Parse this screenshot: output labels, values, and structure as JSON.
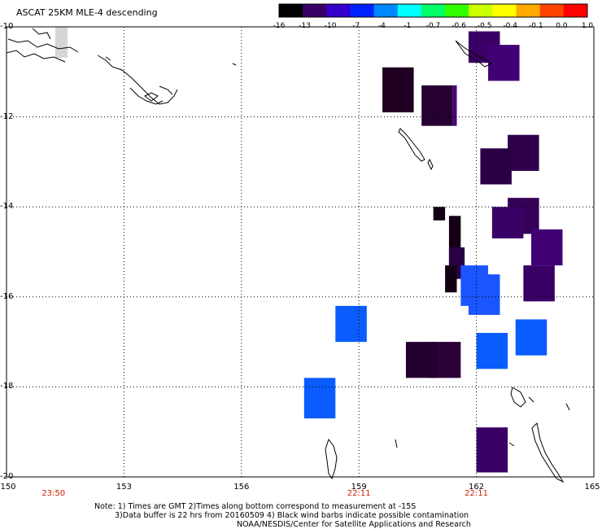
{
  "title": "ASCAT 25KM MLE-4 descending",
  "colorbar": {
    "labels": [
      "-16",
      "-13",
      "-10",
      "-7",
      "-4",
      "-1",
      "-0.7",
      "-0.6",
      "-0.5",
      "-0.4",
      "-0.1",
      "0.0",
      "1.0"
    ],
    "colors": [
      "#000000",
      "#3a0066",
      "#3300cc",
      "#0022ff",
      "#0088ff",
      "#00ffff",
      "#00ff66",
      "#33ff00",
      "#ccff00",
      "#ffff00",
      "#ffaa00",
      "#ff4400",
      "#ff0000"
    ]
  },
  "map": {
    "lon_labels": [
      "150",
      "153",
      "156",
      "159",
      "162",
      "165"
    ],
    "lat_labels": [
      "-10",
      "-12",
      "-14",
      "-16",
      "-18",
      "-20"
    ],
    "lon_range": [
      150,
      165
    ],
    "lat_range": [
      -10,
      -20
    ],
    "pass_times": [
      {
        "lon": 151.2,
        "time": "23:50"
      },
      {
        "lon": 159.0,
        "time": "22:11"
      },
      {
        "lon": 162.0,
        "time": "22:11"
      }
    ],
    "swath_cells": [
      {
        "lon0": 159.6,
        "lon1": 160.4,
        "lat0": -10.9,
        "lat1": -11.9,
        "color": "#1f0022"
      },
      {
        "lon0": 160.6,
        "lon1": 161.4,
        "lat0": -11.3,
        "lat1": -12.2,
        "color": "#250030"
      },
      {
        "lon0": 161.4,
        "lon1": 161.5,
        "lat0": -11.3,
        "lat1": -12.2,
        "color": "#4a0080"
      },
      {
        "lon0": 161.8,
        "lon1": 162.6,
        "lat0": -10.1,
        "lat1": -10.8,
        "color": "#3a0066"
      },
      {
        "lon0": 162.3,
        "lon1": 163.1,
        "lat0": -10.4,
        "lat1": -11.2,
        "color": "#420075"
      },
      {
        "lon0": 162.8,
        "lon1": 163.6,
        "lat0": -12.4,
        "lat1": -13.2,
        "color": "#2e004c"
      },
      {
        "lon0": 162.1,
        "lon1": 162.9,
        "lat0": -12.7,
        "lat1": -13.5,
        "color": "#2a0045"
      },
      {
        "lon0": 162.8,
        "lon1": 163.6,
        "lat0": -13.8,
        "lat1": -14.6,
        "color": "#350058"
      },
      {
        "lon0": 162.4,
        "lon1": 163.2,
        "lat0": -14.0,
        "lat1": -14.7,
        "color": "#3a0066"
      },
      {
        "lon0": 163.4,
        "lon1": 164.2,
        "lat0": -14.5,
        "lat1": -15.3,
        "color": "#420075"
      },
      {
        "lon0": 163.2,
        "lon1": 164.0,
        "lat0": -15.3,
        "lat1": -16.1,
        "color": "#3a0066"
      },
      {
        "lon0": 160.9,
        "lon1": 161.2,
        "lat0": -14.0,
        "lat1": -14.3,
        "color": "#140014"
      },
      {
        "lon0": 161.3,
        "lon1": 161.6,
        "lat0": -14.2,
        "lat1": -15.3,
        "color": "#140014"
      },
      {
        "lon0": 161.3,
        "lon1": 161.7,
        "lat0": -14.9,
        "lat1": -15.6,
        "color": "#2a0045"
      },
      {
        "lon0": 161.2,
        "lon1": 161.5,
        "lat0": -15.3,
        "lat1": -15.9,
        "color": "#140014"
      },
      {
        "lon0": 161.6,
        "lon1": 162.3,
        "lat0": -15.3,
        "lat1": -16.2,
        "color": "#1a55ff"
      },
      {
        "lon0": 161.8,
        "lon1": 162.6,
        "lat0": -15.5,
        "lat1": -16.4,
        "color": "#1a55ff"
      },
      {
        "lon0": 158.4,
        "lon1": 159.2,
        "lat0": -16.2,
        "lat1": -17.0,
        "color": "#0b5cff"
      },
      {
        "lon0": 160.8,
        "lon1": 161.6,
        "lat0": -17.0,
        "lat1": -17.8,
        "color": "#2c0038"
      },
      {
        "lon0": 160.2,
        "lon1": 161.0,
        "lat0": -17.0,
        "lat1": -17.8,
        "color": "#230030"
      },
      {
        "lon0": 162.0,
        "lon1": 162.8,
        "lat0": -16.8,
        "lat1": -17.6,
        "color": "#0b5cff"
      },
      {
        "lon0": 163.0,
        "lon1": 163.8,
        "lat0": -16.5,
        "lat1": -17.3,
        "color": "#0b5cff"
      },
      {
        "lon0": 157.6,
        "lon1": 158.4,
        "lat0": -17.8,
        "lat1": -18.7,
        "color": "#0b5cff"
      },
      {
        "lon0": 162.0,
        "lon1": 162.8,
        "lat0": -18.9,
        "lat1": -19.9,
        "color": "#3a0066"
      }
    ]
  },
  "notes": [
    "Note: 1) Times are GMT 2)Times along bottom correspond to measurement at -15S",
    "3)Data buffer is 22 hrs from 20160509 4) Black wind barbs indicate possible contamination",
    "NOAA/NESDIS/Center for Satellite Applications and Research"
  ]
}
